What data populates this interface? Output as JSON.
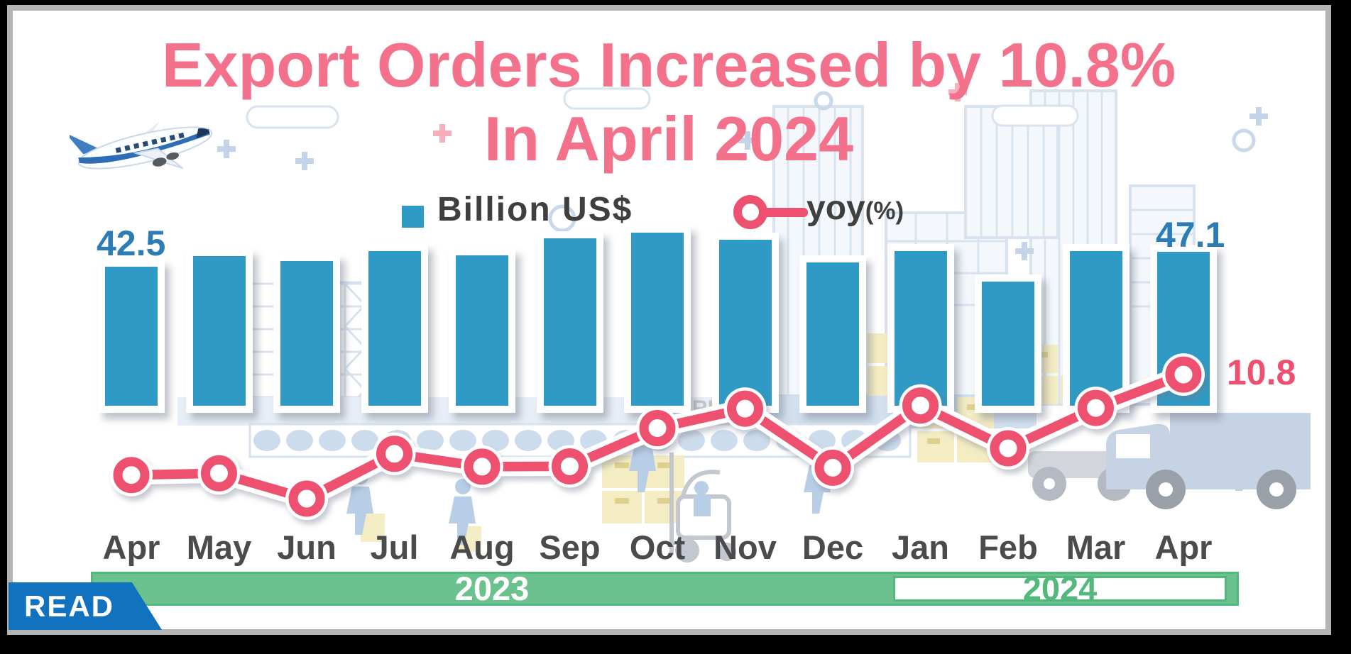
{
  "title": {
    "line1": "Export Orders Increased by 10.8%",
    "line2": "In April 2024"
  },
  "legend": {
    "bar_label": "Billion US$",
    "line_label": "yoy",
    "line_unit": "(%)"
  },
  "callouts": {
    "first_bar": "42.5",
    "last_bar": "47.1",
    "last_yoy": "10.8"
  },
  "timeline": {
    "left_year": "2023",
    "right_year": "2024"
  },
  "ribbon": {
    "label": "READ"
  },
  "background": {
    "sign_text": "RE"
  },
  "colors": {
    "bar": "#2f9ac5",
    "line": "#ee5170",
    "title": "#f4718c",
    "value_label": "#2d7cb5",
    "month_label": "#4b4b4b",
    "legend_text": "#3f3f3f",
    "band_green": "#6cc28e",
    "band_border": "#53b87c",
    "ribbon_blue": "#1173bf"
  },
  "chart_data": {
    "type": "bar",
    "title": "Export Orders Increased by 10.8% In April 2024",
    "categories": [
      "Apr",
      "May",
      "Jun",
      "Jul",
      "Aug",
      "Sep",
      "Oct",
      "Nov",
      "Dec",
      "Jan",
      "Feb",
      "Mar",
      "Apr"
    ],
    "category_years": [
      "2023",
      "2023",
      "2023",
      "2023",
      "2023",
      "2023",
      "2023",
      "2023",
      "2023",
      "2024",
      "2024",
      "2024",
      "2024"
    ],
    "series": [
      {
        "name": "Billion US$",
        "type": "bar",
        "values": [
          42.5,
          45.7,
          44.2,
          47.3,
          46.0,
          51.2,
          52.9,
          50.7,
          43.9,
          47.3,
          38.0,
          47.2,
          47.1
        ]
      },
      {
        "name": "yoy(%)",
        "type": "line",
        "values": [
          -18.1,
          -17.6,
          -24.9,
          -12.0,
          -15.7,
          -15.6,
          -4.6,
          1.0,
          -16.0,
          1.9,
          -10.4,
          1.2,
          10.8
        ]
      }
    ],
    "labeled_values": {
      "apr_2023_bar": 42.5,
      "apr_2024_bar": 47.1,
      "apr_2024_yoy": 10.8
    },
    "xlabel": "",
    "ylabel": "",
    "legend_position": "top-center",
    "grid": false
  }
}
